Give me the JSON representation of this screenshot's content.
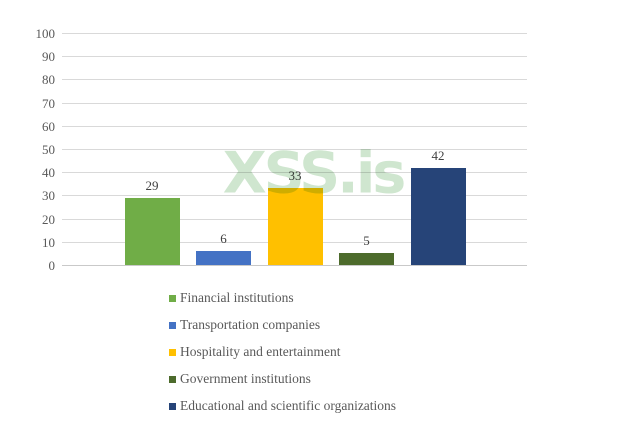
{
  "watermark": {
    "text": "XSS.is",
    "color": "#cfe6cf"
  },
  "chart_data": {
    "type": "bar",
    "title": "",
    "xlabel": "",
    "ylabel": "",
    "categories": [
      "Financial institutions",
      "Transportation companies",
      "Hospitality and entertainment",
      "Government institutions",
      "Educational and scientific organizations"
    ],
    "values": [
      29,
      6,
      33,
      5,
      42
    ],
    "data_labels": [
      "29",
      "6",
      "33",
      "5",
      "42"
    ],
    "series_colors": [
      "#70ad47",
      "#4472c4",
      "#ffc000",
      "#4d6b2c",
      "#264478"
    ],
    "ylim": [
      0,
      100
    ],
    "yticks": [
      0,
      10,
      20,
      30,
      40,
      50,
      60,
      70,
      80,
      90,
      100
    ],
    "grid": true,
    "grid_color": "#d9d9d9",
    "legend_position": "bottom",
    "legend": [
      {
        "label": "Financial institutions",
        "color": "#70ad47"
      },
      {
        "label": "Transportation companies",
        "color": "#4472c4"
      },
      {
        "label": "Hospitality and entertainment",
        "color": "#ffc000"
      },
      {
        "label": "Government institutions",
        "color": "#4d6b2c"
      },
      {
        "label": "Educational and scientific organizations",
        "color": "#264478"
      }
    ]
  }
}
